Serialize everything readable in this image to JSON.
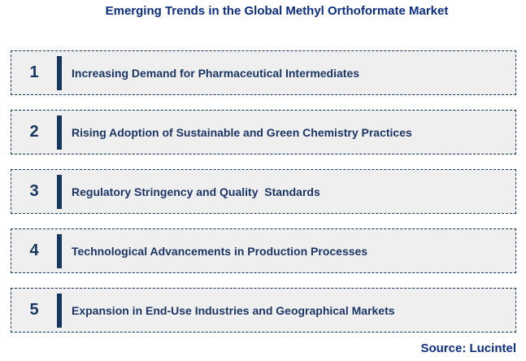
{
  "title": "Emerging Trends in the Global Methyl Orthoformate Market",
  "source_label": "Source: Lucintel",
  "colors": {
    "title_blue": "#0a2d82",
    "navy": "#17365d",
    "box_fill": "#efefef",
    "background": "#ffffff"
  },
  "trends": [
    {
      "number": "1",
      "label": "Increasing Demand for Pharmaceutical Intermediates"
    },
    {
      "number": "2",
      "label": "Rising Adoption of Sustainable and Green Chemistry Practices"
    },
    {
      "number": "3",
      "label": "Regulatory Stringency and Quality  Standards"
    },
    {
      "number": "4",
      "label": "Technological Advancements in Production Processes"
    },
    {
      "number": "5",
      "label": "Expansion in End-Use Industries and Geographical Markets"
    }
  ]
}
